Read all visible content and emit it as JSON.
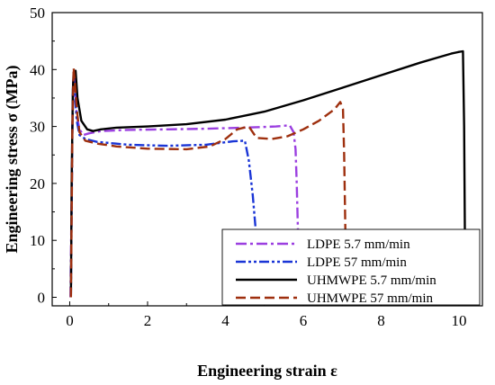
{
  "chart_data": {
    "type": "line",
    "xlabel": "Engineering strain ε",
    "ylabel": "Engineering stress σ (MPa)",
    "xlim": [
      -0.45,
      10.6
    ],
    "ylim": [
      -1.5,
      50
    ],
    "xticks": [
      0,
      2,
      4,
      6,
      8,
      10
    ],
    "yticks": [
      0,
      10,
      20,
      30,
      40,
      50
    ],
    "grid": false,
    "legend_position": "bottom-right",
    "series": [
      {
        "name": "LDPE 5.7 mm/min",
        "color": "#9b3fe0",
        "dash": "dashdot",
        "x": [
          0.02,
          0.04,
          0.06,
          0.08,
          0.1,
          0.14,
          0.18,
          0.25,
          0.35,
          0.5,
          0.8,
          1.5,
          2.5,
          3.5,
          4.5,
          5.3,
          5.65,
          5.75,
          5.8,
          5.83,
          5.86
        ],
        "y": [
          0,
          12,
          26,
          36,
          39.5,
          37,
          32,
          29.5,
          28.5,
          28.8,
          29.2,
          29.4,
          29.5,
          29.6,
          29.8,
          30,
          30.2,
          29,
          26,
          20,
          12
        ]
      },
      {
        "name": "LDPE 57 mm/min",
        "color": "#1a35d6",
        "dash": "dashdotdot",
        "x": [
          0.03,
          0.05,
          0.07,
          0.1,
          0.13,
          0.18,
          0.25,
          0.4,
          0.7,
          1.5,
          2.5,
          3.5,
          4.2,
          4.5,
          4.6,
          4.7,
          4.8,
          4.88
        ],
        "y": [
          0,
          15,
          30,
          38,
          36,
          31,
          28.5,
          27.8,
          27.3,
          26.8,
          26.6,
          26.8,
          27.4,
          27.5,
          24,
          18,
          10,
          5
        ]
      },
      {
        "name": "UHMWPE 5.7 mm/min",
        "color": "#000000",
        "dash": "solid",
        "x": [
          0.03,
          0.05,
          0.08,
          0.1,
          0.15,
          0.2,
          0.3,
          0.45,
          0.6,
          0.8,
          1.2,
          2,
          3,
          4,
          5,
          6,
          7,
          8,
          9,
          9.5,
          9.8,
          10,
          10.1,
          10.13,
          10.15
        ],
        "y": [
          0,
          20,
          36,
          39.5,
          39.8,
          35,
          31,
          29.5,
          29.2,
          29.5,
          29.8,
          30,
          30.4,
          31.2,
          32.6,
          34.6,
          36.8,
          39,
          41.2,
          42.2,
          42.8,
          43.1,
          43.2,
          30,
          12
        ]
      },
      {
        "name": "UHMWPE 57 mm/min",
        "color": "#9e2f0e",
        "dash": "dashed",
        "x": [
          0.03,
          0.05,
          0.07,
          0.1,
          0.13,
          0.18,
          0.25,
          0.4,
          0.7,
          1.2,
          2,
          3,
          3.6,
          4,
          4.3,
          4.6,
          4.8,
          5.2,
          5.6,
          6,
          6.4,
          6.8,
          6.95,
          7.02,
          7.05,
          7.08
        ],
        "y": [
          0,
          14,
          30,
          40.3,
          38,
          33,
          29,
          27.5,
          27,
          26.5,
          26.1,
          26,
          26.5,
          27.8,
          29.5,
          30,
          28,
          27.8,
          28.3,
          29.5,
          31,
          33,
          34.3,
          33,
          25,
          12
        ]
      }
    ]
  }
}
